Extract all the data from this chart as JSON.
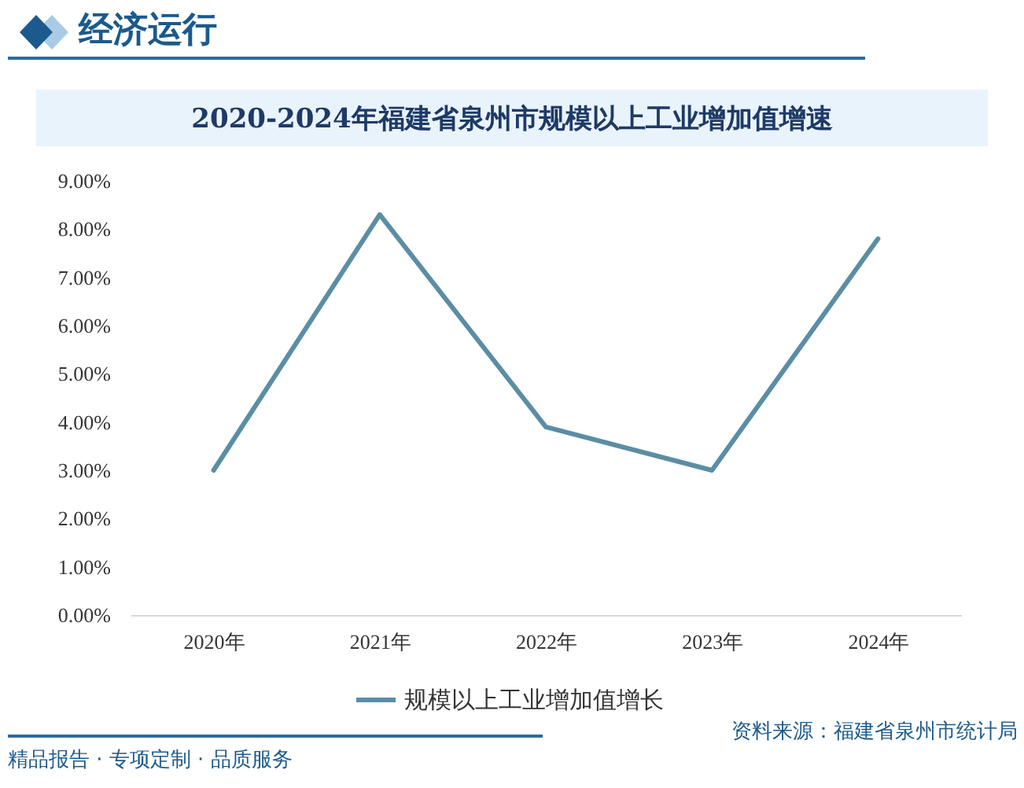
{
  "chart_data": {
    "type": "line",
    "title": "2020-2024年福建省泉州市规模以上工业增加值增速",
    "categories": [
      "2020年",
      "2021年",
      "2022年",
      "2023年",
      "2024年"
    ],
    "series": [
      {
        "name": "规模以上工业增加值增长",
        "color": "#5a8ea4",
        "values": [
          3.0,
          8.3,
          3.9,
          3.0,
          7.8
        ]
      }
    ],
    "ylim": [
      0,
      9
    ],
    "yticks": [
      {
        "value": 0,
        "label": "0.00%"
      },
      {
        "value": 1,
        "label": "1.00%"
      },
      {
        "value": 2,
        "label": "2.00%"
      },
      {
        "value": 3,
        "label": "3.00%"
      },
      {
        "value": 4,
        "label": "4.00%"
      },
      {
        "value": 5,
        "label": "5.00%"
      },
      {
        "value": 6,
        "label": "6.00%"
      },
      {
        "value": 7,
        "label": "7.00%"
      },
      {
        "value": 8,
        "label": "8.00%"
      },
      {
        "value": 9,
        "label": "9.00%"
      }
    ],
    "legend": "bottom",
    "annotations": [
      "经济运行",
      "资料来源：福建省泉州市统计局",
      "精品报告 · 专项定制 · 品质服务"
    ]
  }
}
